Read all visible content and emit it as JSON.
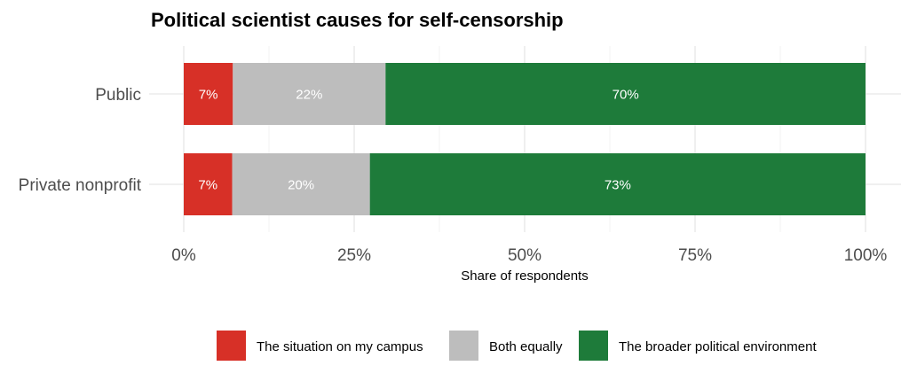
{
  "chart_data": {
    "type": "bar",
    "orientation": "horizontal",
    "stacked": true,
    "title": "Political scientist causes for self-censorship",
    "xlabel": "Share of respondents",
    "ylabel": "",
    "xlim": [
      0,
      1
    ],
    "x_ticks": [
      0,
      0.25,
      0.5,
      0.75,
      1
    ],
    "x_tick_labels": [
      "0%",
      "25%",
      "50%",
      "75%",
      "100%"
    ],
    "grid": true,
    "legend_position": "bottom",
    "categories": [
      "Public",
      "Private nonprofit"
    ],
    "series": [
      {
        "name": "The situation on my campus",
        "color": "#d73027",
        "values": [
          0.072,
          0.071
        ],
        "labels": [
          "7%",
          "7%"
        ]
      },
      {
        "name": "Both equally",
        "color": "#bdbdbd",
        "values": [
          0.224,
          0.202
        ],
        "labels": [
          "22%",
          "20%"
        ]
      },
      {
        "name": "The broader political environment",
        "color": "#1e7b3a",
        "values": [
          0.704,
          0.727
        ],
        "labels": [
          "70%",
          "73%"
        ]
      }
    ]
  }
}
